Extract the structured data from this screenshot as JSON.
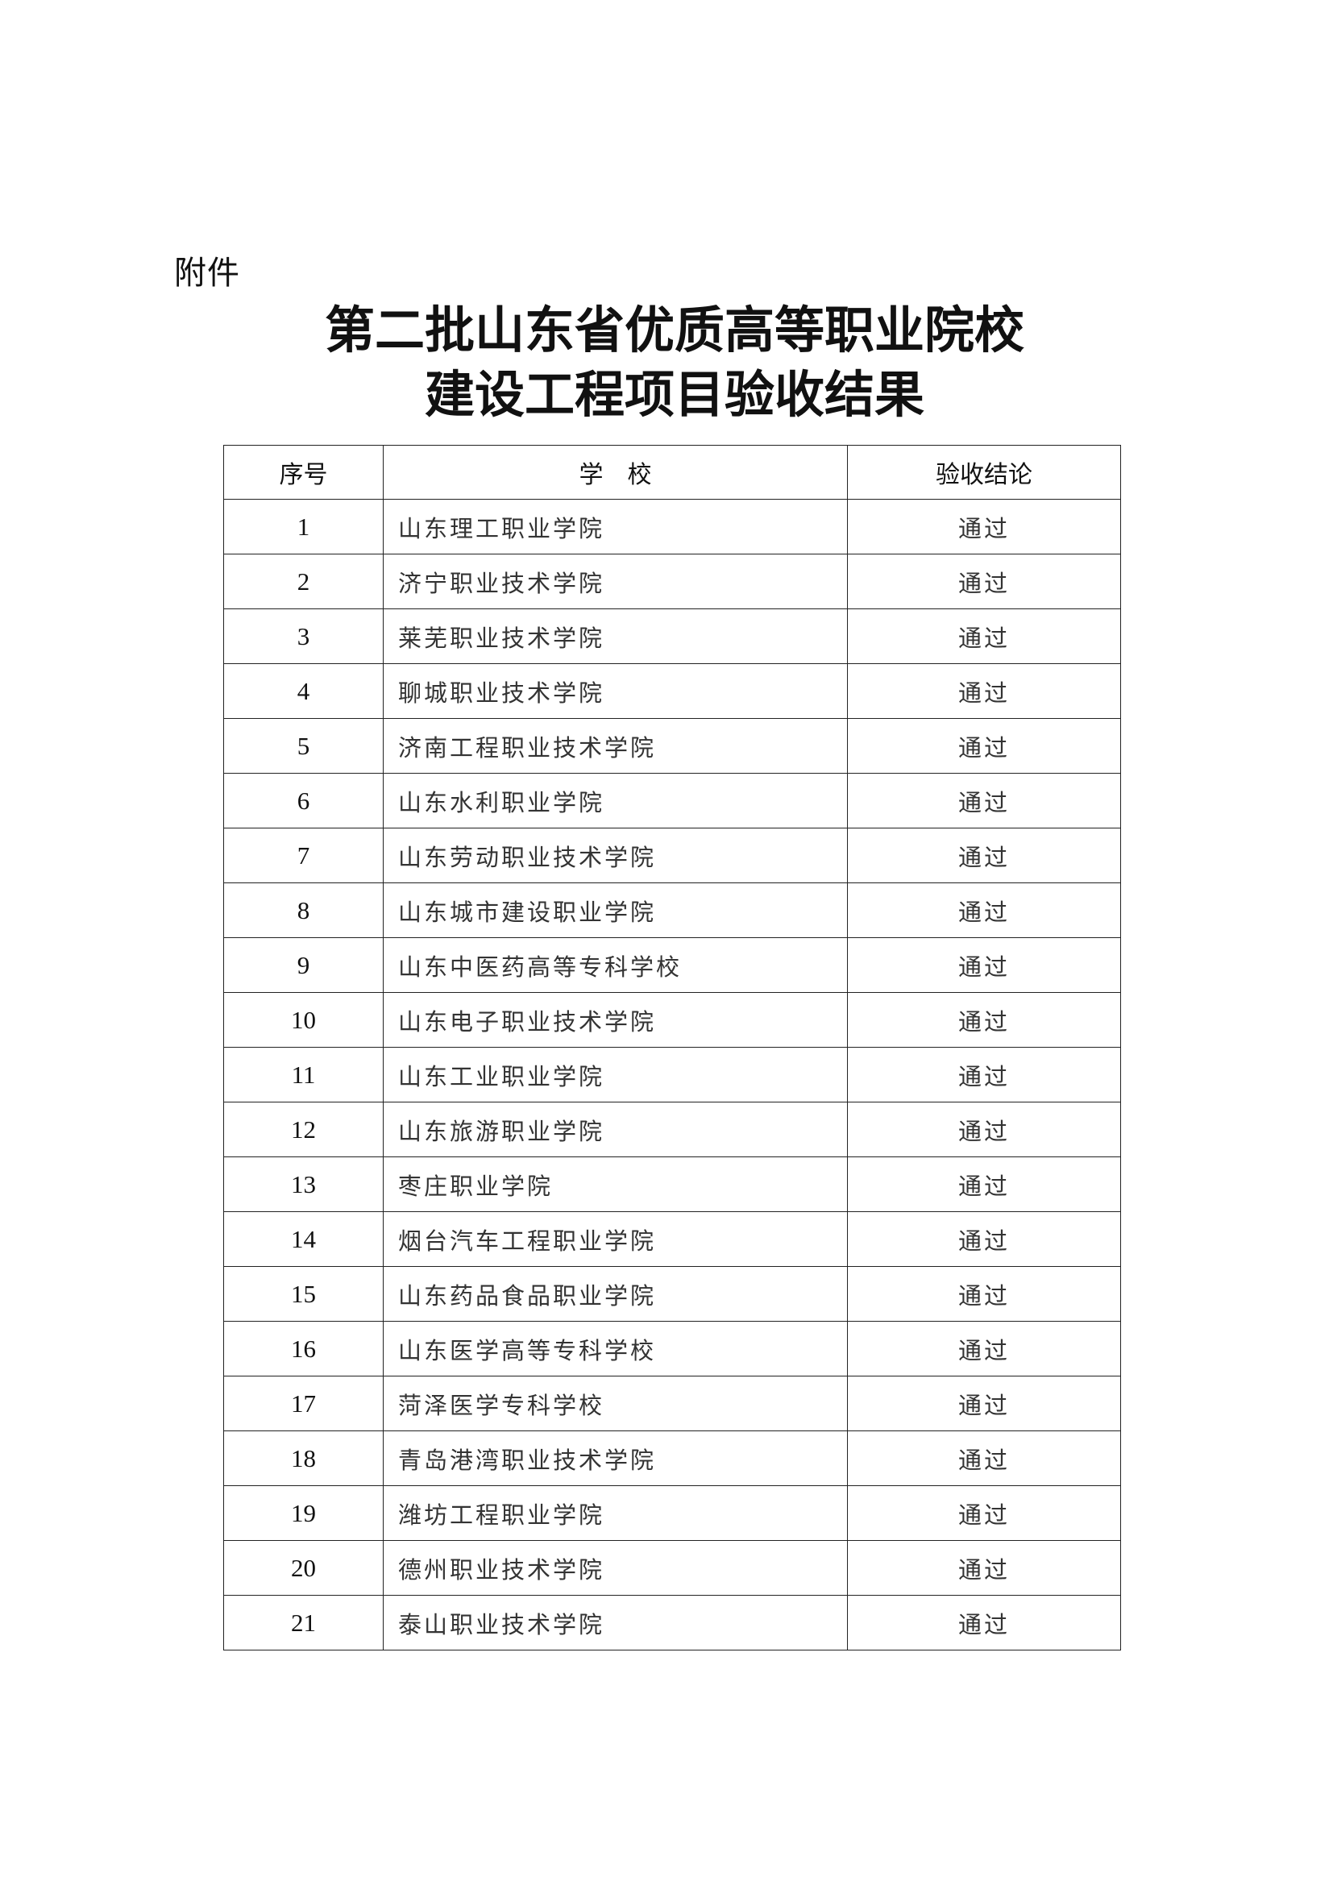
{
  "attachment_label": "附件",
  "title_line1": "第二批山东省优质高等职业院校",
  "title_line2": "建设工程项目验收结果",
  "table": {
    "headers": [
      "序号",
      "学　校",
      "验收结论"
    ],
    "rows": [
      {
        "no": "1",
        "school": "山东理工职业学院",
        "result": "通过"
      },
      {
        "no": "2",
        "school": "济宁职业技术学院",
        "result": "通过"
      },
      {
        "no": "3",
        "school": "莱芜职业技术学院",
        "result": "通过"
      },
      {
        "no": "4",
        "school": "聊城职业技术学院",
        "result": "通过"
      },
      {
        "no": "5",
        "school": "济南工程职业技术学院",
        "result": "通过"
      },
      {
        "no": "6",
        "school": "山东水利职业学院",
        "result": "通过"
      },
      {
        "no": "7",
        "school": "山东劳动职业技术学院",
        "result": "通过"
      },
      {
        "no": "8",
        "school": "山东城市建设职业学院",
        "result": "通过"
      },
      {
        "no": "9",
        "school": "山东中医药高等专科学校",
        "result": "通过"
      },
      {
        "no": "10",
        "school": "山东电子职业技术学院",
        "result": "通过"
      },
      {
        "no": "11",
        "school": "山东工业职业学院",
        "result": "通过"
      },
      {
        "no": "12",
        "school": "山东旅游职业学院",
        "result": "通过"
      },
      {
        "no": "13",
        "school": "枣庄职业学院",
        "result": "通过"
      },
      {
        "no": "14",
        "school": "烟台汽车工程职业学院",
        "result": "通过"
      },
      {
        "no": "15",
        "school": "山东药品食品职业学院",
        "result": "通过"
      },
      {
        "no": "16",
        "school": "山东医学高等专科学校",
        "result": "通过"
      },
      {
        "no": "17",
        "school": "菏泽医学专科学校",
        "result": "通过"
      },
      {
        "no": "18",
        "school": "青岛港湾职业技术学院",
        "result": "通过"
      },
      {
        "no": "19",
        "school": "潍坊工程职业学院",
        "result": "通过"
      },
      {
        "no": "20",
        "school": "德州职业技术学院",
        "result": "通过"
      },
      {
        "no": "21",
        "school": "泰山职业技术学院",
        "result": "通过"
      }
    ]
  }
}
